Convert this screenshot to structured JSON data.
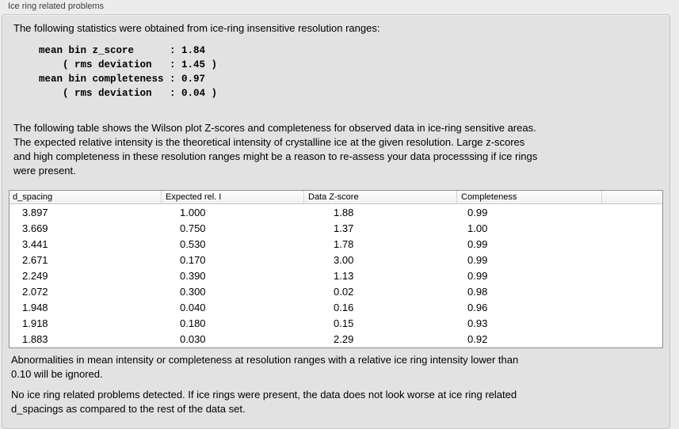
{
  "panel": {
    "title": "Ice ring related problems"
  },
  "intro_text": "The following statistics were obtained from ice-ring insensitive resolution ranges:",
  "stats_block": "mean bin z_score      : 1.84\n    ( rms deviation   : 1.45 )\nmean bin completeness : 0.97\n    ( rms deviation   : 0.04 )",
  "description_text": "The following table shows the Wilson plot Z-scores and completeness for observed data in ice-ring sensitive areas.\nThe expected relative intensity is the theoretical intensity of crystalline ice at the given resolution. Large z-scores\nand high completeness in these resolution ranges might be a reason to re-assess your data processsing if ice rings\nwere present.",
  "table": {
    "columns": [
      "d_spacing",
      "Expected rel. I",
      "Data Z-score",
      "Completeness"
    ],
    "rows": [
      [
        "3.897",
        "1.000",
        "1.88",
        "0.99"
      ],
      [
        "3.669",
        "0.750",
        "1.37",
        "1.00"
      ],
      [
        "3.441",
        "0.530",
        "1.78",
        "0.99"
      ],
      [
        "2.671",
        "0.170",
        "3.00",
        "0.99"
      ],
      [
        "2.249",
        "0.390",
        "1.13",
        "0.99"
      ],
      [
        "2.072",
        "0.300",
        "0.02",
        "0.98"
      ],
      [
        "1.948",
        "0.040",
        "0.16",
        "0.96"
      ],
      [
        "1.918",
        "0.180",
        "0.15",
        "0.93"
      ],
      [
        "1.883",
        "0.030",
        "2.29",
        "0.92"
      ]
    ]
  },
  "notes": {
    "ignore_note": "Abnormalities in mean intensity or completeness at resolution ranges with a relative ice ring intensity lower than\n0.10 will be ignored.",
    "conclusion": "No ice ring related problems detected. If ice rings were present, the data does not look worse at ice ring related\nd_spacings as compared to the rest of the data set."
  },
  "colors": {
    "page_bg": "#ececec",
    "panel_bg": "#e2e2e2",
    "panel_border": "#c6c6c6",
    "table_bg": "#ffffff",
    "table_border": "#8e8e8e",
    "header_bg": "#f5f5f5",
    "text": "#000000",
    "title_text": "#3d3d3d"
  }
}
